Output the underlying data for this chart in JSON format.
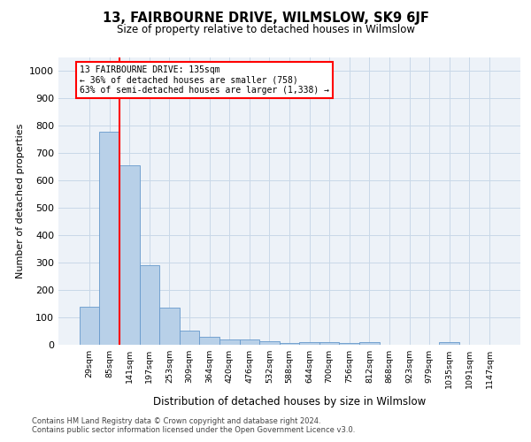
{
  "title": "13, FAIRBOURNE DRIVE, WILMSLOW, SK9 6JF",
  "subtitle": "Size of property relative to detached houses in Wilmslow",
  "xlabel": "Distribution of detached houses by size in Wilmslow",
  "ylabel": "Number of detached properties",
  "bar_color": "#b8d0e8",
  "bar_edge_color": "#6699cc",
  "grid_color": "#c8d8e8",
  "background_color": "#edf2f8",
  "categories": [
    "29sqm",
    "85sqm",
    "141sqm",
    "197sqm",
    "253sqm",
    "309sqm",
    "364sqm",
    "420sqm",
    "476sqm",
    "532sqm",
    "588sqm",
    "644sqm",
    "700sqm",
    "756sqm",
    "812sqm",
    "868sqm",
    "923sqm",
    "979sqm",
    "1035sqm",
    "1091sqm",
    "1147sqm"
  ],
  "values": [
    140,
    780,
    655,
    290,
    135,
    53,
    28,
    20,
    20,
    13,
    8,
    10,
    10,
    8,
    10,
    0,
    0,
    0,
    10,
    0,
    0
  ],
  "ylim": [
    0,
    1050
  ],
  "yticks": [
    0,
    100,
    200,
    300,
    400,
    500,
    600,
    700,
    800,
    900,
    1000
  ],
  "vline_x": 1.5,
  "property_label": "13 FAIRBOURNE DRIVE: 135sqm",
  "pct_smaller": "36% of detached houses are smaller (758)",
  "pct_larger": "63% of semi-detached houses are larger (1,338)",
  "footer_line1": "Contains HM Land Registry data © Crown copyright and database right 2024.",
  "footer_line2": "Contains public sector information licensed under the Open Government Licence v3.0."
}
